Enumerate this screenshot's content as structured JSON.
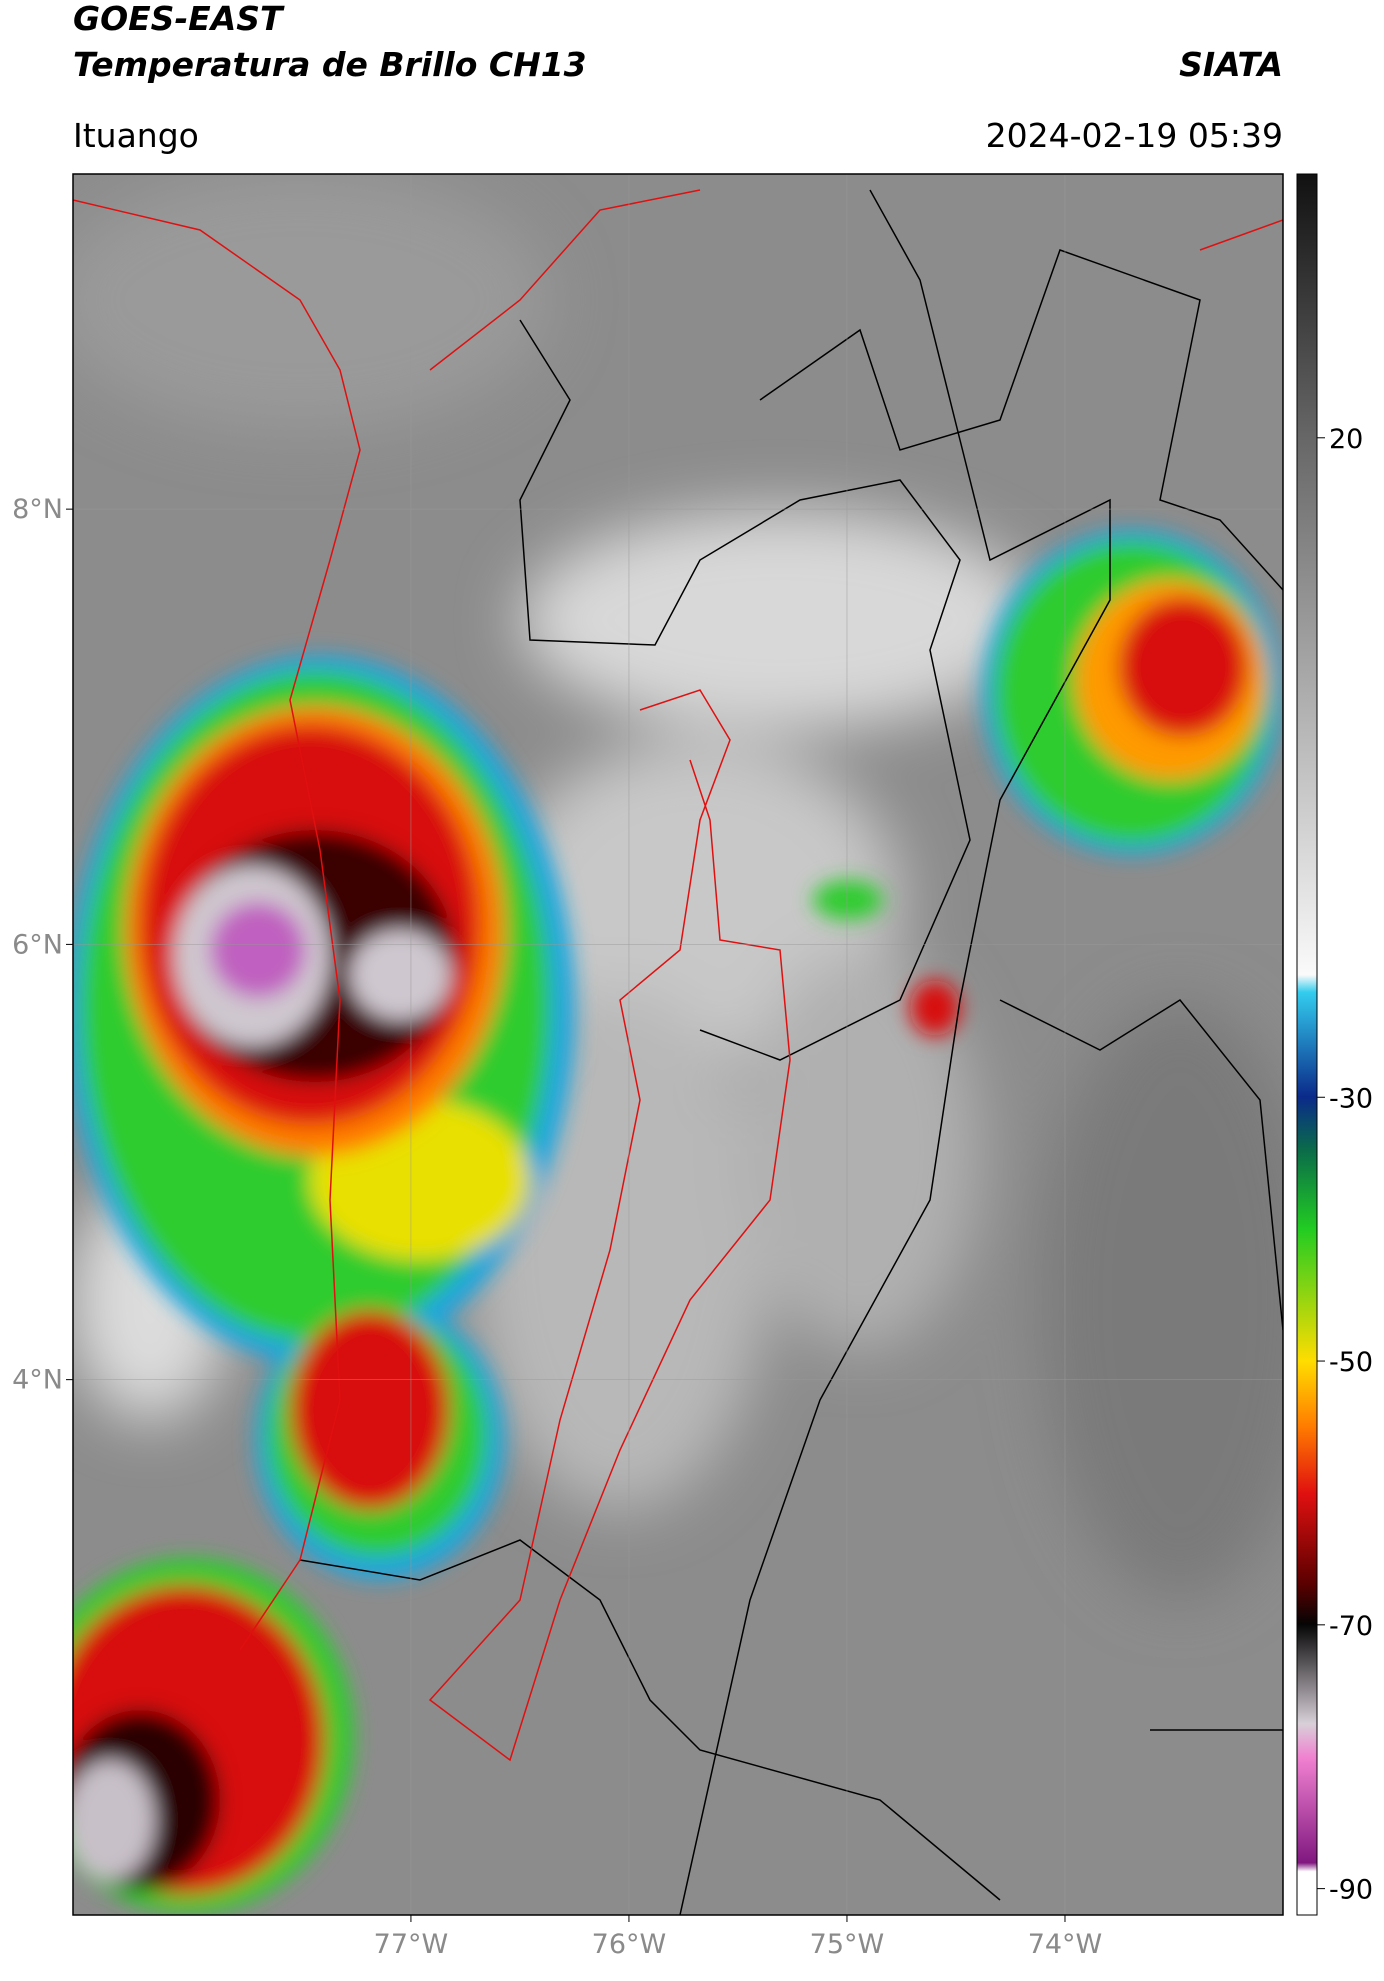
{
  "header": {
    "title": "GOES-EAST",
    "subtitle": "Temperatura de Brillo CH13",
    "source": "SIATA",
    "location": "Ituango",
    "datetime": "2024-02-19 05:39"
  },
  "map": {
    "xlim": [
      -78.55,
      -73.0
    ],
    "ylim": [
      1.54,
      9.54
    ],
    "xticks": [
      {
        "value": -77,
        "label": "77°W"
      },
      {
        "value": -76,
        "label": "76°W"
      },
      {
        "value": -75,
        "label": "75°W"
      },
      {
        "value": -74,
        "label": "74°W"
      }
    ],
    "yticks": [
      {
        "value": 8,
        "label": "8°N"
      },
      {
        "value": 6,
        "label": "6°N"
      },
      {
        "value": 4,
        "label": "4°N"
      }
    ],
    "grid": true
  },
  "colorbar": {
    "lim": [
      -92,
      40
    ],
    "ticks": [
      20,
      -30,
      -50,
      -70,
      -90
    ]
  }
}
